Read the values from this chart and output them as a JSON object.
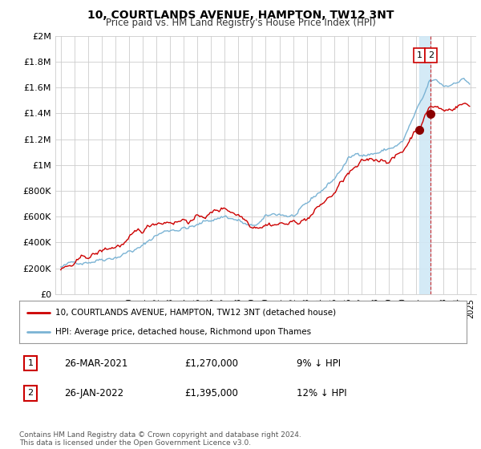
{
  "title": "10, COURTLANDS AVENUE, HAMPTON, TW12 3NT",
  "subtitle": "Price paid vs. HM Land Registry's House Price Index (HPI)",
  "legend1": "10, COURTLANDS AVENUE, HAMPTON, TW12 3NT (detached house)",
  "legend2": "HPI: Average price, detached house, Richmond upon Thames",
  "footer": "Contains HM Land Registry data © Crown copyright and database right 2024.\nThis data is licensed under the Open Government Licence v3.0.",
  "transactions": [
    {
      "num": 1,
      "date": "26-MAR-2021",
      "price": "£1,270,000",
      "note": "9% ↓ HPI"
    },
    {
      "num": 2,
      "date": "26-JAN-2022",
      "price": "£1,395,000",
      "note": "12% ↓ HPI"
    }
  ],
  "hpi_color": "#7ab3d4",
  "price_color": "#cc0000",
  "marker_color": "#8b0000",
  "vline_color": "#cc0000",
  "shade_color": "#d0e8f5",
  "background_color": "#ffffff",
  "grid_color": "#cccccc",
  "ylim": [
    0,
    2000000
  ],
  "yticks": [
    0,
    200000,
    400000,
    600000,
    800000,
    1000000,
    1200000,
    1400000,
    1600000,
    1800000,
    2000000
  ],
  "ytick_labels": [
    "£0",
    "£200K",
    "£400K",
    "£600K",
    "£800K",
    "£1M",
    "£1.2M",
    "£1.4M",
    "£1.6M",
    "£1.8M",
    "£2M"
  ],
  "xlim_start": 1994.6,
  "xlim_end": 2025.4,
  "transaction1_x": 2021.23,
  "transaction1_y": 1270000,
  "transaction2_x": 2022.07,
  "transaction2_y": 1395000
}
